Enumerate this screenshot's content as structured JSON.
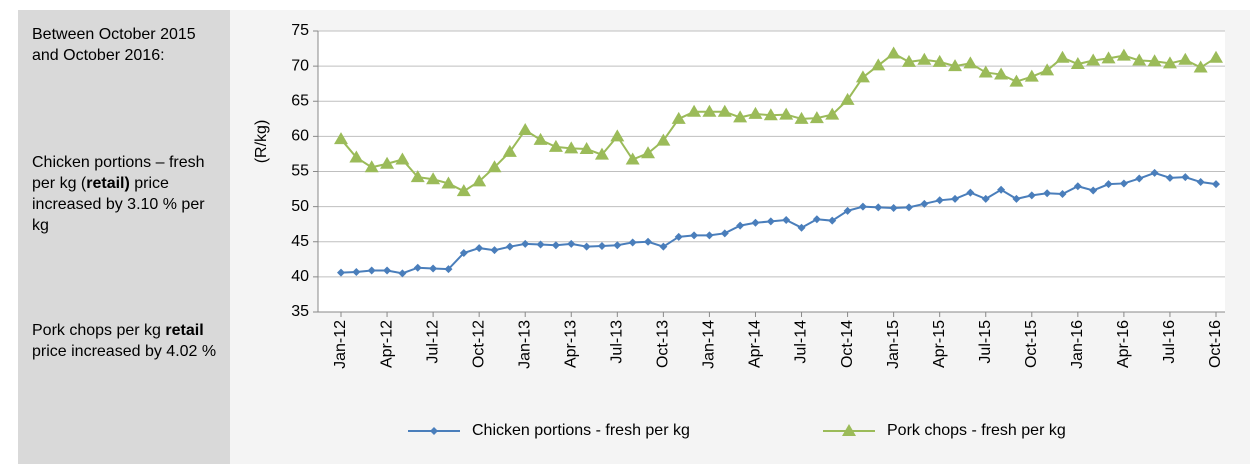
{
  "sidebar": {
    "heading": "Between October 2015 and October 2016:",
    "note1": [
      "Chicken portions – fresh per kg (",
      "retail)",
      " price increased by 3.10 % per kg"
    ],
    "note2": [
      "Pork chops per kg ",
      "retail",
      " price increased by 4.02 %"
    ]
  },
  "chart_data": {
    "type": "line",
    "y_label": "(R/kg)",
    "categories": [
      "Jan-12",
      null,
      null,
      "Apr-12",
      null,
      null,
      "Jul-12",
      null,
      null,
      "Oct-12",
      null,
      null,
      "Jan-13",
      null,
      null,
      "Apr-13",
      null,
      null,
      "Jul-13",
      null,
      null,
      "Oct-13",
      null,
      null,
      "Jan-14",
      null,
      null,
      "Apr-14",
      null,
      null,
      "Jul-14",
      null,
      null,
      "Oct-14",
      null,
      null,
      "Jan-15",
      null,
      null,
      "Apr-15",
      null,
      null,
      "Jul-15",
      null,
      null,
      "Oct-15",
      null,
      null,
      "Jan-16",
      null,
      null,
      "Apr-16",
      null,
      null,
      "Jul-16",
      null,
      null,
      "Oct-16"
    ],
    "series": [
      {
        "name": "Chicken portions - fresh per kg",
        "color": "#4a7ebb",
        "marker": "diamond",
        "values": [
          40.6,
          40.7,
          40.9,
          40.9,
          40.5,
          41.3,
          41.2,
          41.1,
          43.4,
          44.1,
          43.8,
          44.3,
          44.7,
          44.6,
          44.5,
          44.7,
          44.3,
          44.4,
          44.5,
          44.9,
          45.0,
          44.3,
          45.7,
          45.9,
          45.9,
          46.2,
          47.3,
          47.7,
          47.9,
          48.1,
          47.0,
          48.2,
          48.0,
          49.4,
          50.0,
          49.9,
          49.8,
          49.9,
          50.4,
          50.9,
          51.1,
          52.0,
          51.1,
          52.4,
          51.1,
          51.6,
          51.9,
          51.8,
          52.9,
          52.3,
          53.2,
          53.3,
          54.0,
          54.8,
          54.1,
          54.2,
          53.5,
          53.2
        ]
      },
      {
        "name": "Pork chops - fresh per kg",
        "color": "#9bbb59",
        "marker": "triangle",
        "values": [
          59.6,
          57.0,
          55.6,
          56.1,
          56.7,
          54.2,
          53.9,
          53.3,
          52.2,
          53.6,
          55.6,
          57.8,
          60.9,
          59.5,
          58.5,
          58.3,
          58.2,
          57.4,
          60.0,
          56.7,
          57.6,
          59.4,
          62.5,
          63.5,
          63.5,
          63.5,
          62.7,
          63.2,
          63.0,
          63.1,
          62.5,
          62.6,
          63.1,
          65.2,
          68.4,
          70.1,
          71.8,
          70.6,
          70.9,
          70.6,
          70.0,
          70.4,
          69.1,
          68.8,
          67.8,
          68.5,
          69.4,
          71.2,
          70.3,
          70.8,
          71.1,
          71.5,
          70.8,
          70.7,
          70.4,
          70.9,
          69.8,
          71.2
        ]
      }
    ],
    "ylim": [
      35,
      75
    ],
    "yticks": [
      35,
      40,
      45,
      50,
      55,
      60,
      65,
      70,
      75
    ],
    "grid": true,
    "legend": "bottom"
  }
}
